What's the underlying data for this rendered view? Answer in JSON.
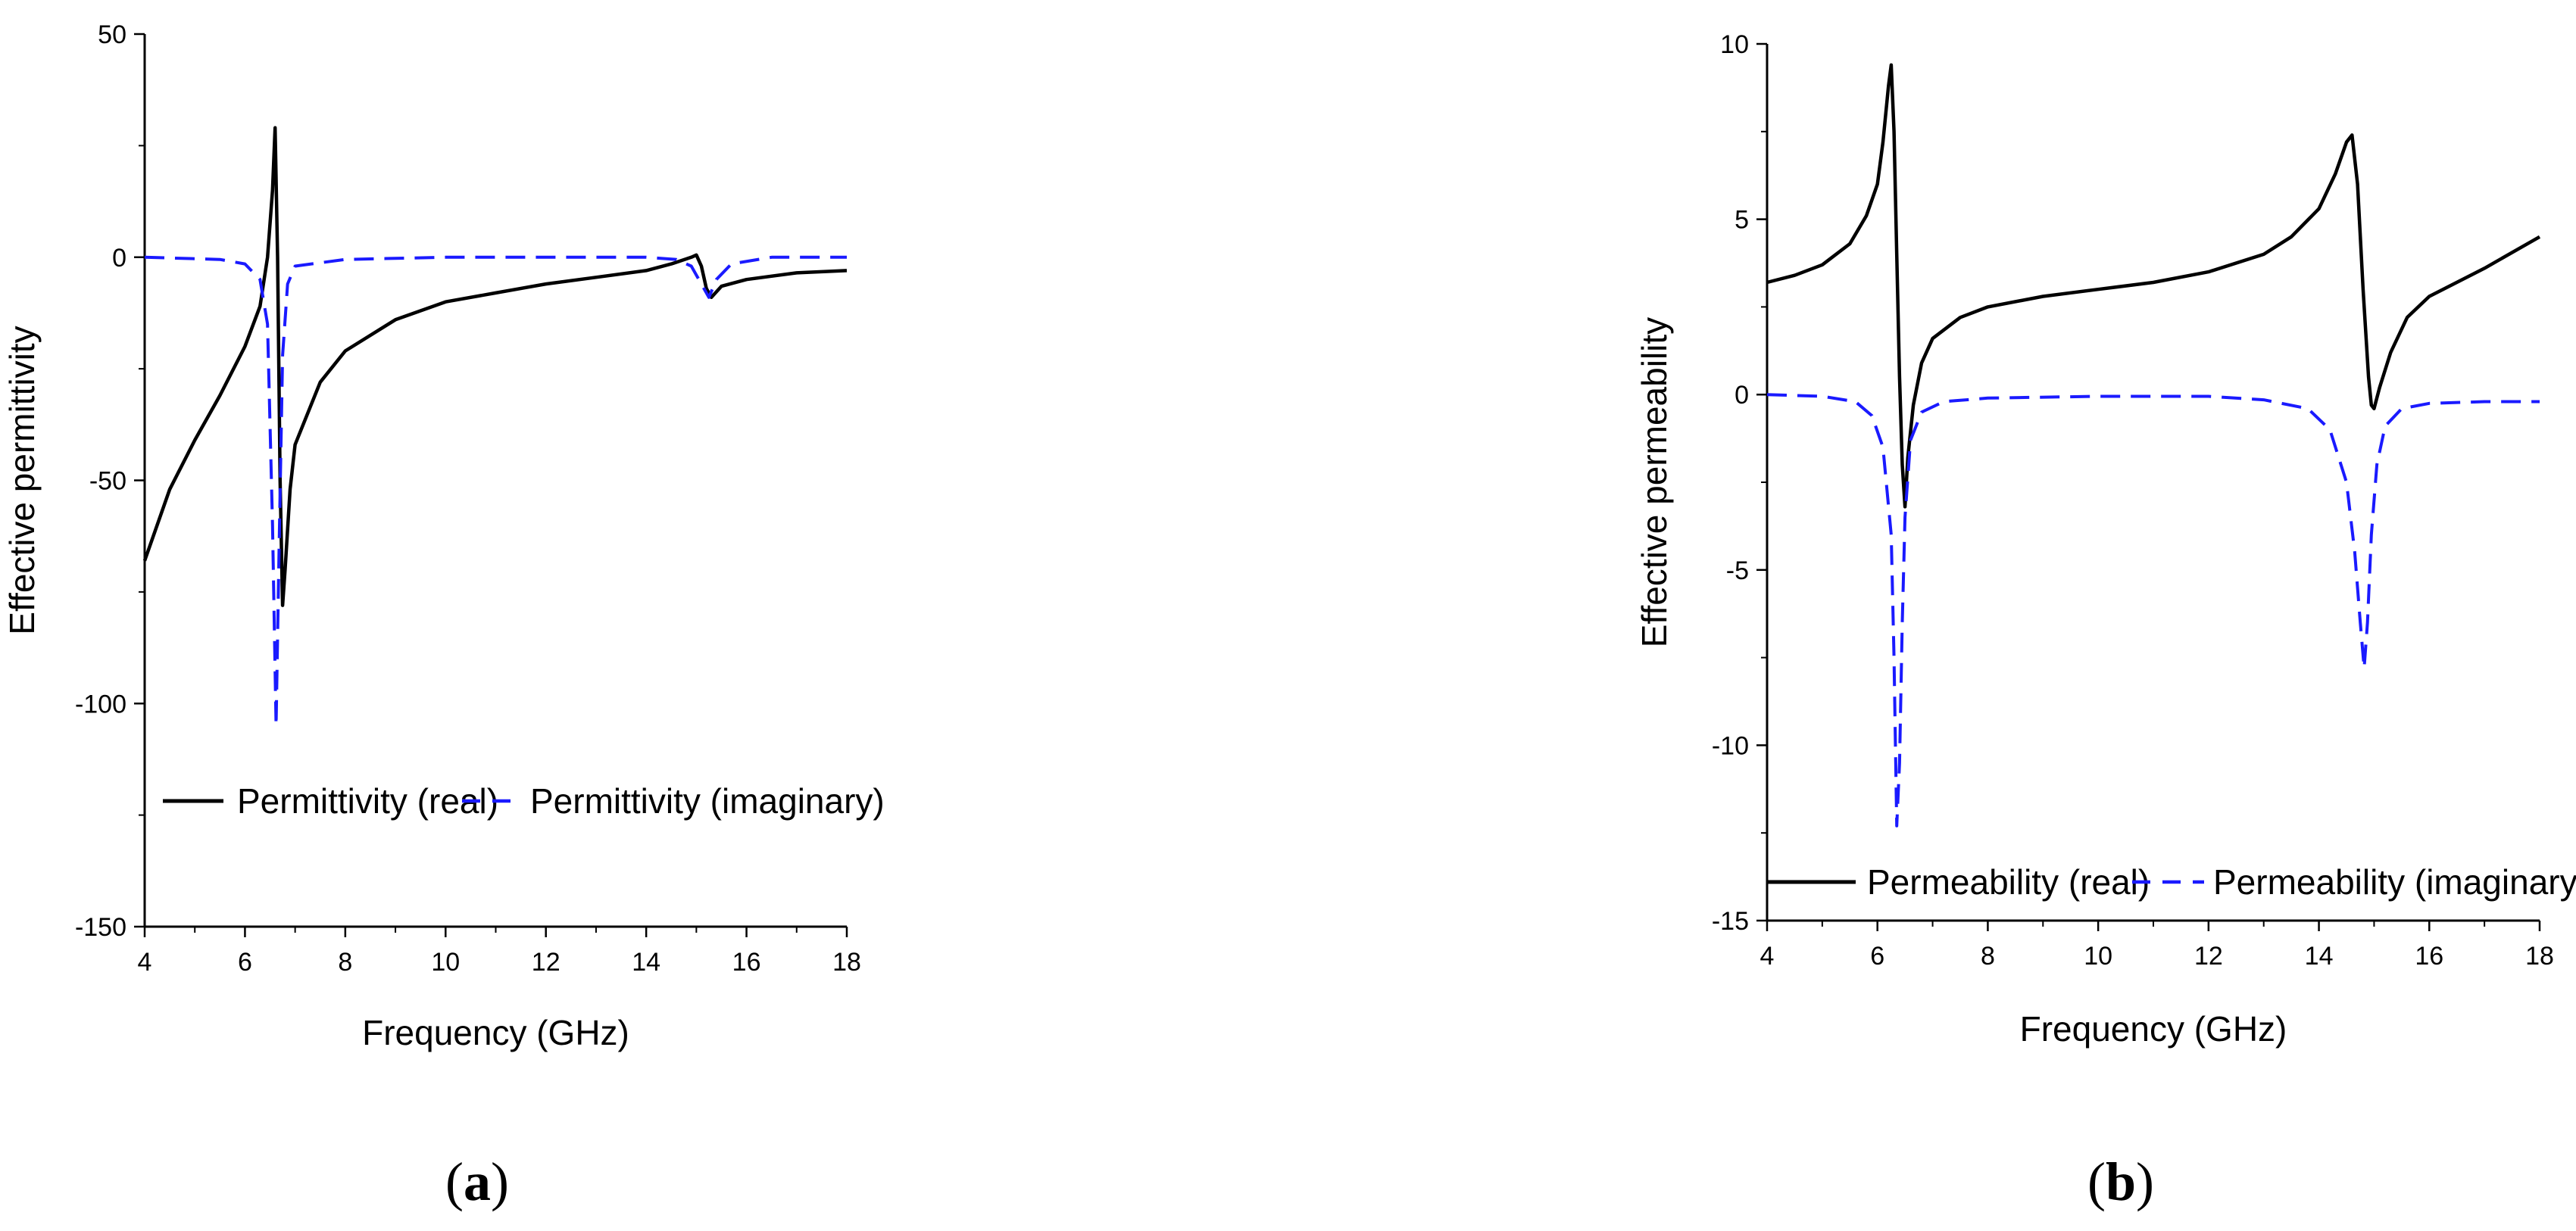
{
  "chart_data": [
    {
      "type": "line",
      "panel_label": "a",
      "xlabel": "Frequency (GHz)",
      "ylabel": "Effective permittivity",
      "xlim": [
        4,
        18
      ],
      "ylim": [
        -150,
        50
      ],
      "x_ticks": [
        4,
        6,
        8,
        10,
        12,
        14,
        16,
        18
      ],
      "y_ticks": [
        50,
        0,
        -50,
        -100,
        -150
      ],
      "legend_placement": "lower-center",
      "series": [
        {
          "name": "Permittivity (real)",
          "style": "solid",
          "color": "#000000",
          "points": [
            [
              4.0,
              -68
            ],
            [
              4.5,
              -52
            ],
            [
              5.0,
              -41
            ],
            [
              5.5,
              -31
            ],
            [
              6.0,
              -20
            ],
            [
              6.3,
              -11
            ],
            [
              6.45,
              0
            ],
            [
              6.55,
              15
            ],
            [
              6.6,
              29
            ],
            [
              6.65,
              0
            ],
            [
              6.7,
              -50
            ],
            [
              6.75,
              -78
            ],
            [
              6.8,
              -70
            ],
            [
              6.9,
              -52
            ],
            [
              7.0,
              -42
            ],
            [
              7.5,
              -28
            ],
            [
              8.0,
              -21
            ],
            [
              9.0,
              -14
            ],
            [
              10.0,
              -10
            ],
            [
              11.0,
              -8
            ],
            [
              12.0,
              -6
            ],
            [
              13.0,
              -4.5
            ],
            [
              14.0,
              -3
            ],
            [
              14.5,
              -1.5
            ],
            [
              14.9,
              0
            ],
            [
              15.0,
              0.5
            ],
            [
              15.1,
              -2
            ],
            [
              15.2,
              -7
            ],
            [
              15.3,
              -9
            ],
            [
              15.5,
              -6.5
            ],
            [
              16.0,
              -5
            ],
            [
              17.0,
              -3.5
            ],
            [
              18.0,
              -3
            ]
          ]
        },
        {
          "name": "Permittivity (imaginary)",
          "style": "dashed",
          "color": "#1a1aff",
          "points": [
            [
              4.0,
              0
            ],
            [
              5.5,
              -0.5
            ],
            [
              6.0,
              -1.5
            ],
            [
              6.3,
              -5
            ],
            [
              6.45,
              -15
            ],
            [
              6.55,
              -60
            ],
            [
              6.62,
              -105
            ],
            [
              6.68,
              -65
            ],
            [
              6.75,
              -22
            ],
            [
              6.85,
              -6
            ],
            [
              7.0,
              -2
            ],
            [
              8.0,
              -0.5
            ],
            [
              10.0,
              0
            ],
            [
              12.0,
              0
            ],
            [
              14.0,
              0
            ],
            [
              14.6,
              -0.5
            ],
            [
              14.9,
              -2
            ],
            [
              15.1,
              -6
            ],
            [
              15.25,
              -9
            ],
            [
              15.4,
              -5
            ],
            [
              15.7,
              -1.5
            ],
            [
              16.5,
              0
            ],
            [
              18.0,
              0
            ]
          ]
        }
      ]
    },
    {
      "type": "line",
      "panel_label": "b",
      "xlabel": "Frequency (GHz)",
      "ylabel": "Effective permeability",
      "xlim": [
        4,
        18
      ],
      "ylim": [
        -15,
        10
      ],
      "x_ticks": [
        4,
        6,
        8,
        10,
        12,
        14,
        16,
        18
      ],
      "y_ticks": [
        10,
        5,
        0,
        -5,
        -10,
        -15
      ],
      "legend_placement": "bottom",
      "series": [
        {
          "name": "Permeability (real)",
          "style": "solid",
          "color": "#000000",
          "points": [
            [
              4.0,
              3.2
            ],
            [
              4.5,
              3.4
            ],
            [
              5.0,
              3.7
            ],
            [
              5.5,
              4.3
            ],
            [
              5.8,
              5.1
            ],
            [
              6.0,
              6.0
            ],
            [
              6.1,
              7.2
            ],
            [
              6.2,
              8.8
            ],
            [
              6.25,
              9.4
            ],
            [
              6.3,
              7.5
            ],
            [
              6.35,
              4.0
            ],
            [
              6.4,
              0.5
            ],
            [
              6.45,
              -2
            ],
            [
              6.5,
              -3.2
            ],
            [
              6.55,
              -1.8
            ],
            [
              6.65,
              -0.3
            ],
            [
              6.8,
              0.9
            ],
            [
              7.0,
              1.6
            ],
            [
              7.5,
              2.2
            ],
            [
              8.0,
              2.5
            ],
            [
              9.0,
              2.8
            ],
            [
              10.0,
              3.0
            ],
            [
              11.0,
              3.2
            ],
            [
              12.0,
              3.5
            ],
            [
              13.0,
              4.0
            ],
            [
              13.5,
              4.5
            ],
            [
              14.0,
              5.3
            ],
            [
              14.3,
              6.3
            ],
            [
              14.5,
              7.2
            ],
            [
              14.6,
              7.4
            ],
            [
              14.7,
              6.0
            ],
            [
              14.8,
              3.0
            ],
            [
              14.9,
              0.5
            ],
            [
              14.95,
              -0.3
            ],
            [
              15.0,
              -0.4
            ],
            [
              15.1,
              0.2
            ],
            [
              15.3,
              1.2
            ],
            [
              15.6,
              2.2
            ],
            [
              16.0,
              2.8
            ],
            [
              17.0,
              3.6
            ],
            [
              18.0,
              4.5
            ]
          ]
        },
        {
          "name": "Permeability (imaginary)",
          "style": "dashed",
          "color": "#1a1aff",
          "points": [
            [
              4.0,
              0
            ],
            [
              5.0,
              -0.05
            ],
            [
              5.6,
              -0.2
            ],
            [
              5.9,
              -0.6
            ],
            [
              6.1,
              -1.5
            ],
            [
              6.25,
              -4
            ],
            [
              6.3,
              -7.5
            ],
            [
              6.35,
              -12.3
            ],
            [
              6.4,
              -10.5
            ],
            [
              6.45,
              -6.5
            ],
            [
              6.5,
              -3.5
            ],
            [
              6.6,
              -1.3
            ],
            [
              6.8,
              -0.5
            ],
            [
              7.2,
              -0.2
            ],
            [
              8.0,
              -0.1
            ],
            [
              10.0,
              -0.05
            ],
            [
              12.0,
              -0.05
            ],
            [
              13.0,
              -0.15
            ],
            [
              13.8,
              -0.4
            ],
            [
              14.2,
              -1.0
            ],
            [
              14.5,
              -2.5
            ],
            [
              14.65,
              -4.5
            ],
            [
              14.75,
              -6.5
            ],
            [
              14.82,
              -7.8
            ],
            [
              14.88,
              -6.5
            ],
            [
              14.95,
              -4.0
            ],
            [
              15.05,
              -2.0
            ],
            [
              15.2,
              -0.9
            ],
            [
              15.5,
              -0.4
            ],
            [
              16.0,
              -0.25
            ],
            [
              17.0,
              -0.2
            ],
            [
              18.0,
              -0.2
            ]
          ]
        }
      ]
    }
  ]
}
